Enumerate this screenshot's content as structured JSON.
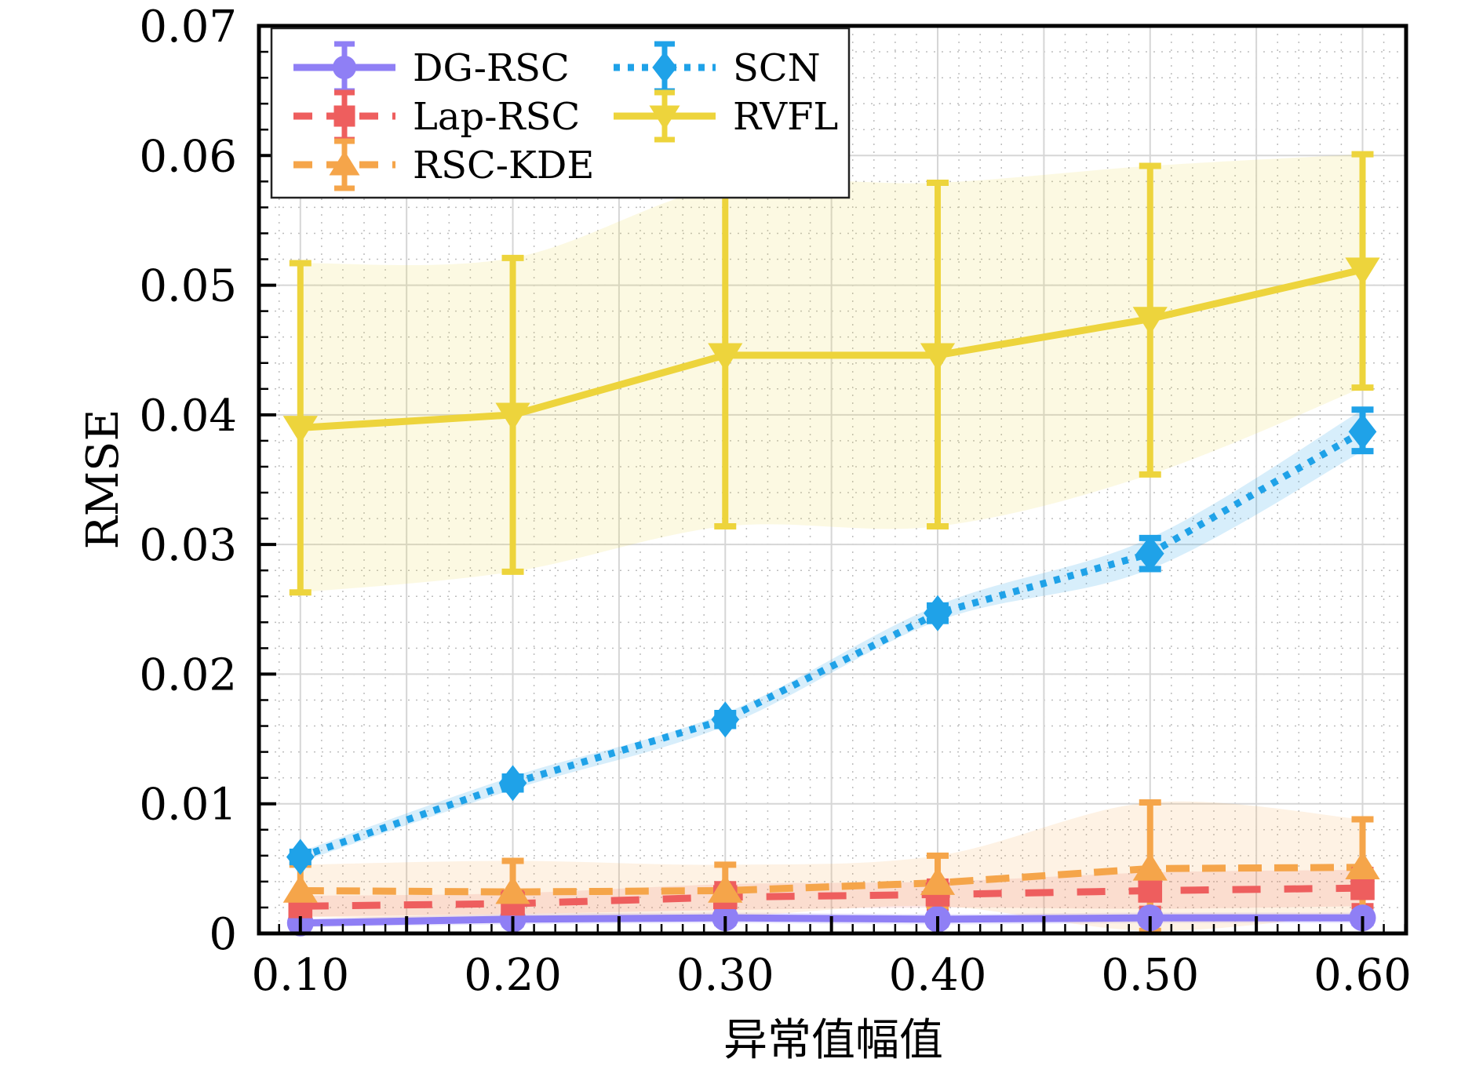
{
  "chart_data": {
    "type": "line",
    "title": "",
    "xlabel": "异常值幅值",
    "ylabel": "RMSE",
    "x": [
      0.1,
      0.2,
      0.3,
      0.4,
      0.5,
      0.6
    ],
    "x_tick_labels": [
      "0.10",
      "0.20",
      "0.30",
      "0.40",
      "0.50",
      "0.60"
    ],
    "y_ticks": [
      0,
      0.01,
      0.02,
      0.03,
      0.04,
      0.05,
      0.06,
      0.07
    ],
    "y_tick_labels": [
      "0",
      "0.01",
      "0.02",
      "0.03",
      "0.04",
      "0.05",
      "0.06",
      "0.07"
    ],
    "xlim": [
      0.0805,
      0.6205
    ],
    "ylim": [
      0,
      0.07
    ],
    "grid": true,
    "legend_position": "top-left",
    "legend_columns": 2,
    "series": [
      {
        "name": "DG-RSC",
        "color": "#8F7FF5",
        "line_style": "solid",
        "marker": "circle",
        "values": [
          0.0008,
          0.0011,
          0.0012,
          0.0011,
          0.0012,
          0.0012
        ],
        "err_low": [
          0.0003,
          0.0004,
          0.0004,
          0.0004,
          0.0004,
          0.0004
        ],
        "err_high": [
          0.0003,
          0.0004,
          0.0004,
          0.0004,
          0.0004,
          0.0004
        ]
      },
      {
        "name": "Lap-RSC",
        "color": "#EE5E5E",
        "line_style": "dashed",
        "marker": "square",
        "values": [
          0.0021,
          0.0023,
          0.0028,
          0.003,
          0.0033,
          0.0035
        ],
        "err_low": [
          0.0008,
          0.0008,
          0.001,
          0.001,
          0.0014,
          0.0014
        ],
        "err_high": [
          0.0008,
          0.0008,
          0.001,
          0.001,
          0.0014,
          0.0014
        ]
      },
      {
        "name": "RSC-KDE",
        "color": "#F5A54A",
        "line_style": "dashdot",
        "marker": "triangle-up",
        "values": [
          0.0033,
          0.0032,
          0.0033,
          0.0039,
          0.005,
          0.0051
        ],
        "err_low": [
          0.002,
          0.0022,
          0.002,
          0.0018,
          0.0048,
          0.0035
        ],
        "err_high": [
          0.002,
          0.0024,
          0.002,
          0.0021,
          0.0051,
          0.0037
        ]
      },
      {
        "name": "SCN",
        "color": "#1FA2E8",
        "line_style": "dotted",
        "marker": "diamond",
        "values": [
          0.0059,
          0.0116,
          0.0165,
          0.0247,
          0.0293,
          0.0387
        ],
        "err_low": [
          0.0004,
          0.0005,
          0.0005,
          0.0006,
          0.0012,
          0.0015
        ],
        "err_high": [
          0.0004,
          0.0005,
          0.0005,
          0.0006,
          0.0012,
          0.0017
        ]
      },
      {
        "name": "RVFL",
        "color": "#EDD43C",
        "line_style": "solid",
        "marker": "triangle-down",
        "values": [
          0.039,
          0.04,
          0.0446,
          0.0446,
          0.0474,
          0.0512
        ],
        "err_low": [
          0.0127,
          0.0121,
          0.0132,
          0.0132,
          0.012,
          0.0091
        ],
        "err_high": [
          0.0127,
          0.0121,
          0.0131,
          0.0133,
          0.0118,
          0.0089
        ]
      }
    ]
  }
}
